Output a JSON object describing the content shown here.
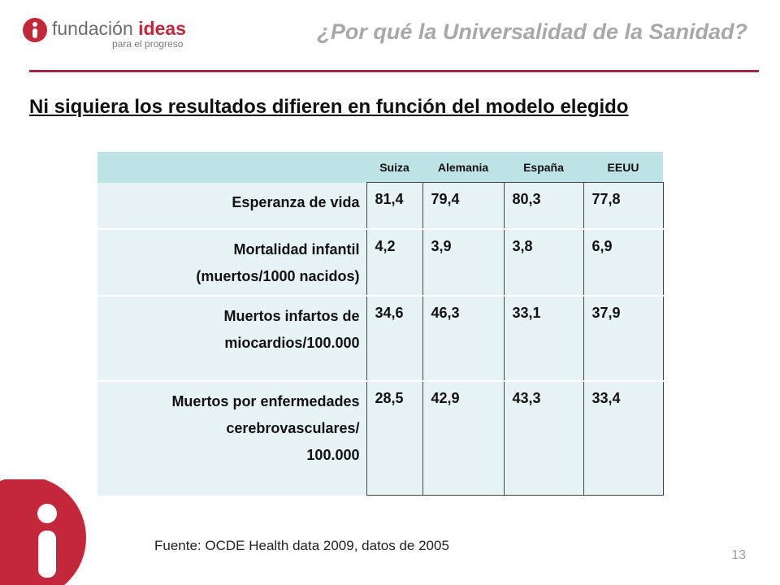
{
  "header": {
    "logo_name_light": "fundación ",
    "logo_name_bold": "ideas",
    "logo_tagline": "para el progreso",
    "title": "¿Por qué la Universalidad de la Sanidad?"
  },
  "slide": {
    "title": "Ni siquiera los resultados difieren en función del modelo elegido"
  },
  "table": {
    "columns": [
      "Suiza",
      "Alemania",
      "España",
      "EEUU"
    ],
    "rows": [
      {
        "label_lines": [
          "Esperanza de vida"
        ],
        "values": [
          "81,4",
          "79,4",
          "80,3",
          "77,8"
        ]
      },
      {
        "label_lines": [
          "Mortalidad infantil",
          "(muertos/1000 nacidos)"
        ],
        "values": [
          "4,2",
          "3,9",
          "3,8",
          "6,9"
        ]
      },
      {
        "label_lines": [
          "Muertos infartos de",
          "miocardios/100.000"
        ],
        "values": [
          "34,6",
          "46,3",
          "33,1",
          "37,9"
        ]
      },
      {
        "label_lines": [
          "Muertos por enfermedades",
          "cerebrovasculares/",
          "100.000"
        ],
        "values": [
          "28,5",
          "42,9",
          "43,3",
          "33,4"
        ]
      }
    ]
  },
  "footer": {
    "source": "Fuente: OCDE Health data 2009, datos de 2005",
    "page_number": "13"
  },
  "colors": {
    "brand_red": "#c2273a",
    "rule": "#a02a45",
    "table_header": "#bde3e5",
    "table_body": "#e8f3f5"
  },
  "icons": [
    "fundacion-ideas-logo-icon",
    "big-i-logo-icon"
  ]
}
